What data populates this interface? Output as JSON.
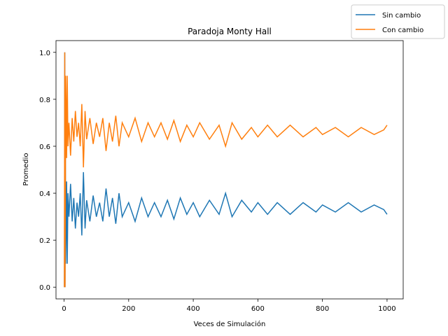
{
  "chart_data": {
    "type": "line",
    "title": "Paradoja Monty Hall",
    "xlabel": "Veces de Simulación",
    "ylabel": "Promedio",
    "xlim": [
      -25,
      1050
    ],
    "ylim": [
      -0.05,
      1.05
    ],
    "xticks": [
      0,
      200,
      400,
      600,
      800,
      1000
    ],
    "yticks": [
      0.0,
      0.2,
      0.4,
      0.6,
      0.8,
      1.0
    ],
    "xtick_labels": [
      "0",
      "200",
      "400",
      "600",
      "800",
      "1000"
    ],
    "ytick_labels": [
      "0.0",
      "0.2",
      "0.4",
      "0.6",
      "0.8",
      "1.0"
    ],
    "legend_position": "top-right (outside axes)",
    "grid": false,
    "series": [
      {
        "name": "Sin cambio",
        "color": "#1f77b4",
        "points": [
          [
            1,
            0.0
          ],
          [
            2,
            1.0
          ],
          [
            3,
            0.0
          ],
          [
            4,
            0.6
          ],
          [
            5,
            0.1
          ],
          [
            6,
            0.2
          ],
          [
            8,
            0.45
          ],
          [
            10,
            0.1
          ],
          [
            12,
            0.4
          ],
          [
            15,
            0.3
          ],
          [
            20,
            0.44
          ],
          [
            25,
            0.28
          ],
          [
            30,
            0.38
          ],
          [
            35,
            0.25
          ],
          [
            40,
            0.36
          ],
          [
            45,
            0.3
          ],
          [
            50,
            0.4
          ],
          [
            55,
            0.22
          ],
          [
            60,
            0.49
          ],
          [
            65,
            0.25
          ],
          [
            70,
            0.37
          ],
          [
            80,
            0.28
          ],
          [
            90,
            0.39
          ],
          [
            100,
            0.3
          ],
          [
            110,
            0.36
          ],
          [
            120,
            0.28
          ],
          [
            130,
            0.42
          ],
          [
            140,
            0.3
          ],
          [
            150,
            0.38
          ],
          [
            160,
            0.27
          ],
          [
            170,
            0.4
          ],
          [
            180,
            0.3
          ],
          [
            200,
            0.36
          ],
          [
            220,
            0.28
          ],
          [
            240,
            0.38
          ],
          [
            260,
            0.3
          ],
          [
            280,
            0.36
          ],
          [
            300,
            0.3
          ],
          [
            320,
            0.37
          ],
          [
            340,
            0.29
          ],
          [
            360,
            0.38
          ],
          [
            380,
            0.31
          ],
          [
            400,
            0.36
          ],
          [
            420,
            0.3
          ],
          [
            450,
            0.37
          ],
          [
            480,
            0.31
          ],
          [
            500,
            0.4
          ],
          [
            520,
            0.3
          ],
          [
            550,
            0.37
          ],
          [
            580,
            0.32
          ],
          [
            600,
            0.36
          ],
          [
            630,
            0.31
          ],
          [
            660,
            0.36
          ],
          [
            700,
            0.31
          ],
          [
            740,
            0.36
          ],
          [
            780,
            0.32
          ],
          [
            800,
            0.35
          ],
          [
            840,
            0.32
          ],
          [
            880,
            0.36
          ],
          [
            920,
            0.32
          ],
          [
            960,
            0.35
          ],
          [
            990,
            0.33
          ],
          [
            1000,
            0.31
          ]
        ]
      },
      {
        "name": "Con cambio",
        "color": "#ff7f0e",
        "points": [
          [
            1,
            0.0
          ],
          [
            2,
            1.0
          ],
          [
            3,
            0.0
          ],
          [
            4,
            0.4
          ],
          [
            5,
            0.9
          ],
          [
            6,
            0.8
          ],
          [
            8,
            0.55
          ],
          [
            10,
            0.9
          ],
          [
            12,
            0.6
          ],
          [
            15,
            0.7
          ],
          [
            20,
            0.56
          ],
          [
            25,
            0.72
          ],
          [
            30,
            0.62
          ],
          [
            35,
            0.75
          ],
          [
            40,
            0.64
          ],
          [
            45,
            0.7
          ],
          [
            50,
            0.6
          ],
          [
            55,
            0.78
          ],
          [
            60,
            0.51
          ],
          [
            65,
            0.75
          ],
          [
            70,
            0.63
          ],
          [
            80,
            0.72
          ],
          [
            90,
            0.61
          ],
          [
            100,
            0.7
          ],
          [
            110,
            0.64
          ],
          [
            120,
            0.72
          ],
          [
            130,
            0.58
          ],
          [
            140,
            0.7
          ],
          [
            150,
            0.62
          ],
          [
            160,
            0.73
          ],
          [
            170,
            0.6
          ],
          [
            180,
            0.7
          ],
          [
            200,
            0.64
          ],
          [
            220,
            0.72
          ],
          [
            240,
            0.62
          ],
          [
            260,
            0.7
          ],
          [
            280,
            0.64
          ],
          [
            300,
            0.7
          ],
          [
            320,
            0.63
          ],
          [
            340,
            0.71
          ],
          [
            360,
            0.62
          ],
          [
            380,
            0.69
          ],
          [
            400,
            0.64
          ],
          [
            420,
            0.7
          ],
          [
            450,
            0.63
          ],
          [
            480,
            0.69
          ],
          [
            500,
            0.6
          ],
          [
            520,
            0.7
          ],
          [
            550,
            0.63
          ],
          [
            580,
            0.68
          ],
          [
            600,
            0.64
          ],
          [
            630,
            0.69
          ],
          [
            660,
            0.64
          ],
          [
            700,
            0.69
          ],
          [
            740,
            0.64
          ],
          [
            780,
            0.68
          ],
          [
            800,
            0.65
          ],
          [
            840,
            0.68
          ],
          [
            880,
            0.64
          ],
          [
            920,
            0.68
          ],
          [
            960,
            0.65
          ],
          [
            990,
            0.67
          ],
          [
            1000,
            0.69
          ]
        ]
      }
    ]
  }
}
